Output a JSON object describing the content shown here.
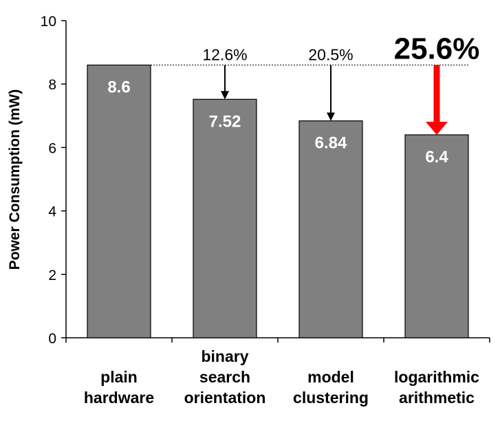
{
  "chart_data": {
    "type": "bar",
    "title": "",
    "xlabel": "",
    "ylabel": "Power Consumption (mW)",
    "ylim": [
      0,
      10
    ],
    "yticks": [
      0,
      2,
      4,
      6,
      8,
      10
    ],
    "grid": false,
    "categories": [
      [
        "plain",
        "hardware"
      ],
      [
        "binary",
        "search",
        "orientation"
      ],
      [
        "model",
        "clustering"
      ],
      [
        "logarithmic",
        "arithmetic"
      ]
    ],
    "values": [
      8.6,
      7.52,
      6.84,
      6.4
    ],
    "value_labels": [
      "8.6",
      "7.52",
      "6.84",
      "6.4"
    ],
    "reference_line": 8.6,
    "reductions": [
      {
        "category_index": 1,
        "label": "12.6%",
        "highlight": false
      },
      {
        "category_index": 2,
        "label": "20.5%",
        "highlight": false
      },
      {
        "category_index": 3,
        "label": "25.6%",
        "highlight": true
      }
    ],
    "colors": {
      "bar_fill": "#808080",
      "bar_stroke": "#000000",
      "arrow": "#000000",
      "highlight": "#ff0000"
    }
  }
}
